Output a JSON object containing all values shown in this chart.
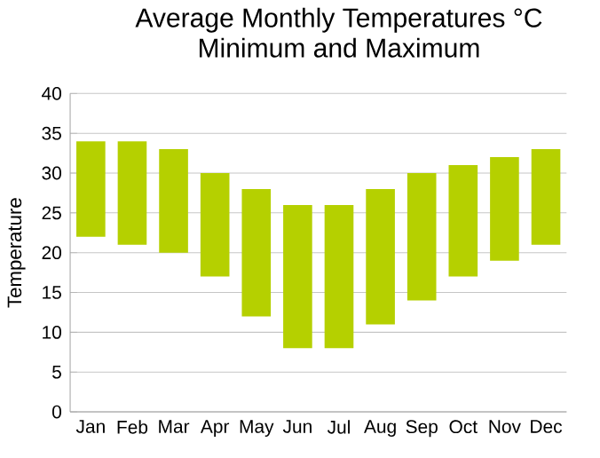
{
  "chart_data": {
    "type": "bar",
    "title": "Average Monthly Temperatures °C",
    "subtitle": "Minimum and Maximum",
    "ylabel": "Temperature",
    "categories": [
      "Jan",
      "Feb",
      "Mar",
      "Apr",
      "May",
      "Jun",
      "Jul",
      "Aug",
      "Sep",
      "Oct",
      "Nov",
      "Dec"
    ],
    "base": [
      22,
      21,
      20,
      17,
      12,
      8,
      8,
      11,
      14,
      17,
      19,
      21
    ],
    "values": [
      12,
      13,
      13,
      13,
      16,
      18,
      18,
      17,
      16,
      14,
      13,
      12
    ],
    "color": "#b5d000",
    "ylim": [
      0,
      40
    ],
    "yticks": [
      0,
      5,
      10,
      15,
      20,
      25,
      30,
      35,
      40
    ],
    "grid": "y"
  }
}
